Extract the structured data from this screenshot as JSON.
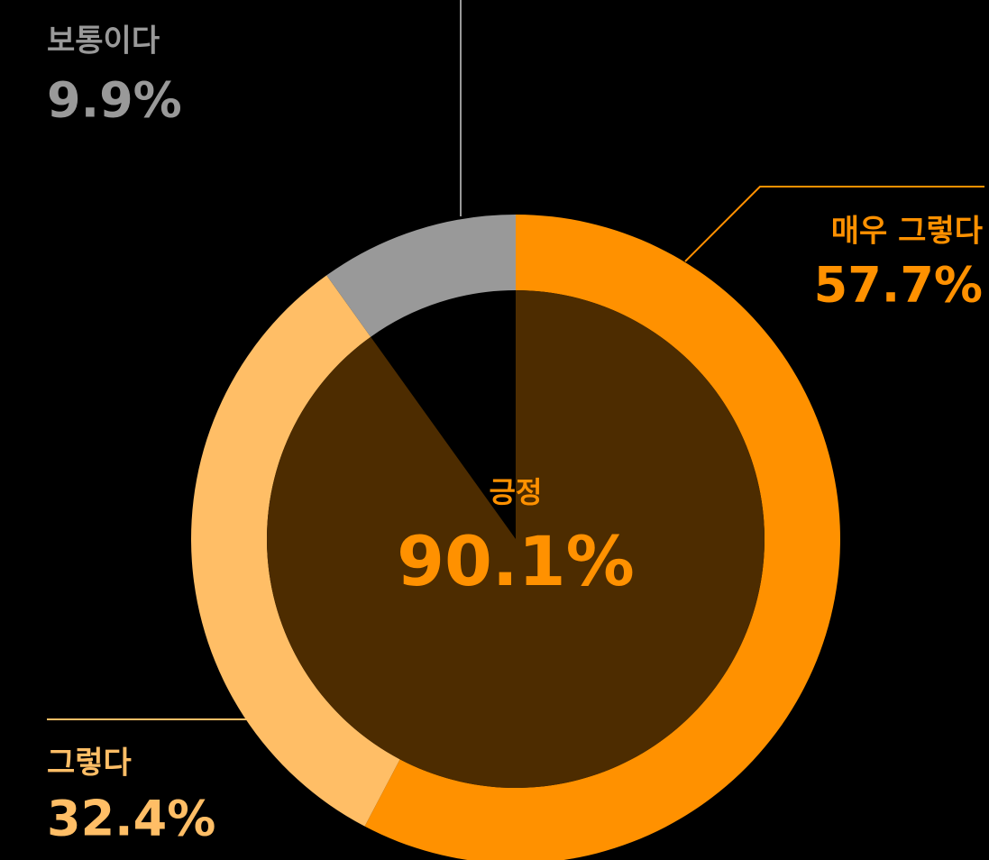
{
  "chart_data": {
    "type": "donut",
    "series": [
      {
        "name": "매우 그렇다",
        "color": "#FF9100",
        "values": [
          57.7
        ],
        "value_labels": [
          "57.7%"
        ]
      },
      {
        "name": "그렇다",
        "color": "#FFBE66",
        "values": [
          32.4
        ],
        "value_labels": [
          "32.4%"
        ]
      },
      {
        "name": "보통이다",
        "color": "#999999",
        "values": [
          9.9
        ],
        "value_labels": [
          "9.9%"
        ]
      }
    ],
    "center": {
      "label": "긍정",
      "value": 90.1,
      "value_label": "90.1%",
      "color": "#4D2C00",
      "text_color": "#FF9100"
    }
  }
}
